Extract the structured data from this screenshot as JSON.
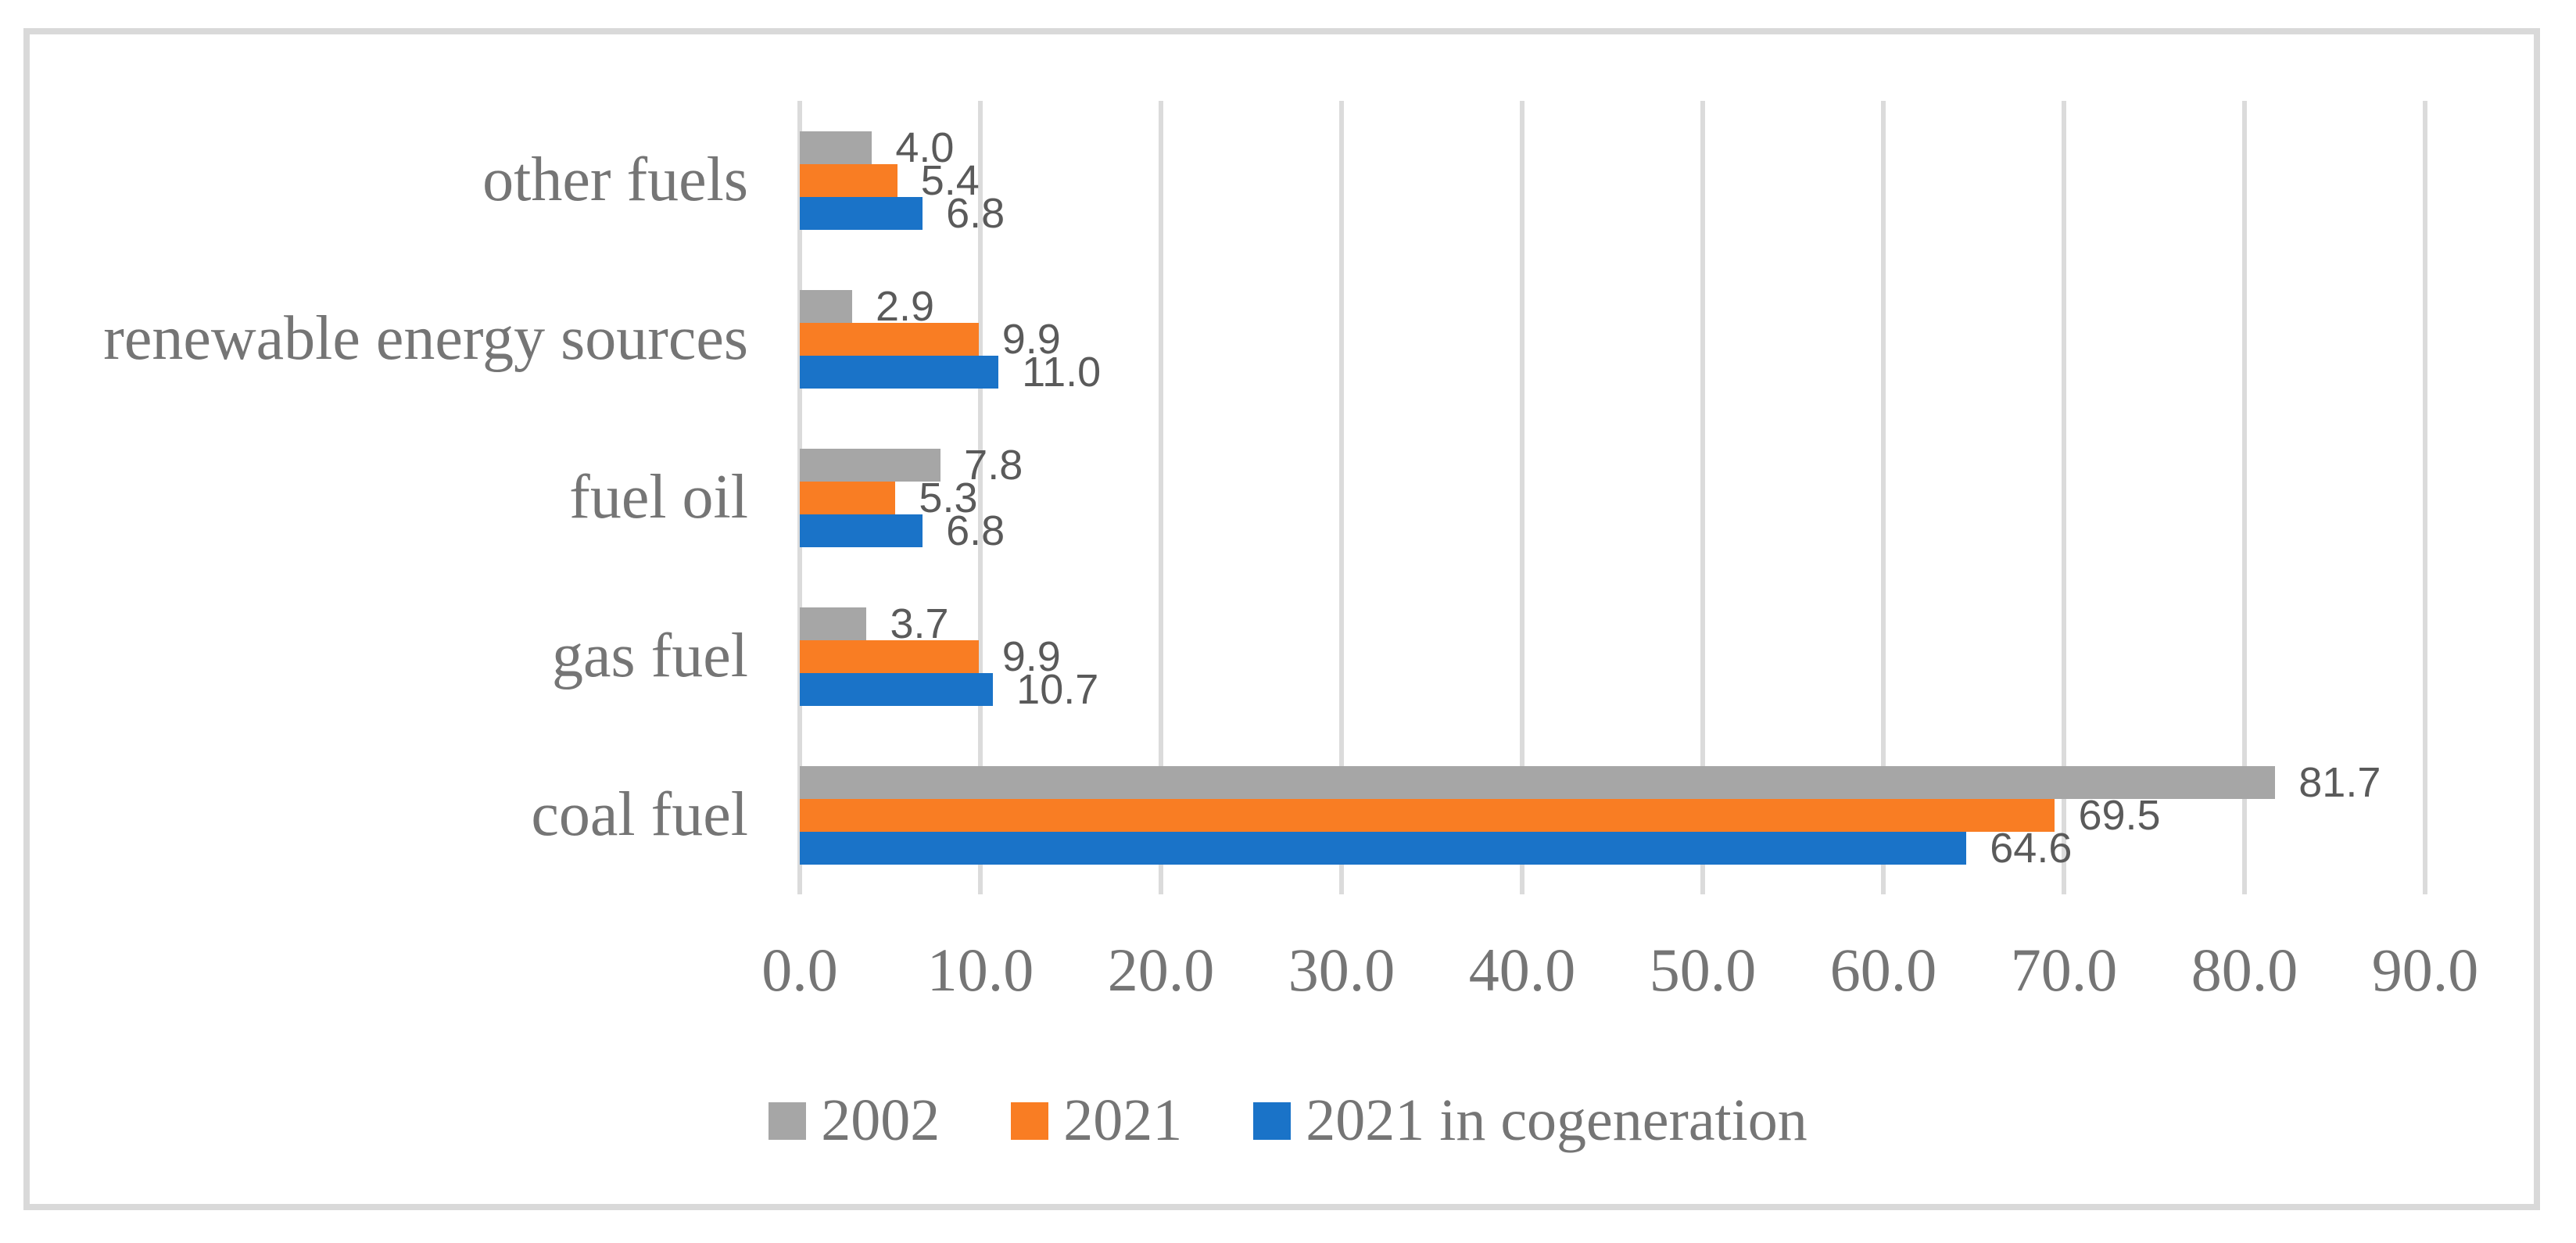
{
  "chart_data": {
    "type": "bar",
    "orientation": "horizontal",
    "title": "",
    "categories": [
      "other fuels",
      "renewable energy sources",
      "fuel oil",
      "gas fuel",
      "coal fuel"
    ],
    "series": [
      {
        "name": "2002",
        "color": "#A6A6A6",
        "values": [
          4.0,
          2.9,
          7.8,
          3.7,
          81.7
        ],
        "labels": [
          "4.0",
          "2.9",
          "7.8",
          "3.7",
          "81.7"
        ]
      },
      {
        "name": "2021",
        "color": "#F97D23",
        "values": [
          5.4,
          9.9,
          5.3,
          9.9,
          69.5
        ],
        "labels": [
          "5.4",
          "9.9",
          "5.3",
          "9.9",
          "69.5"
        ]
      },
      {
        "name": "2021 in cogeneration",
        "color": "#1A73C8",
        "values": [
          6.8,
          11.0,
          6.8,
          10.7,
          64.6
        ],
        "labels": [
          "6.8",
          "11.0",
          "6.8",
          "10.7",
          "64.6"
        ]
      }
    ],
    "xlim": [
      0,
      90
    ],
    "x_ticks": [
      "0.0",
      "10.0",
      "20.0",
      "30.0",
      "40.0",
      "50.0",
      "60.0",
      "70.0",
      "80.0",
      "90.0"
    ],
    "grid": true,
    "legend_position": "bottom",
    "colors": {
      "gridline": "#DBDBDB",
      "figure_border": "#D9D9D9",
      "axis_text": "#757575",
      "category_text": "#757575",
      "legend_text": "#757575",
      "data_label_text": "#5A5A5A",
      "background": "#FFFFFF"
    }
  }
}
